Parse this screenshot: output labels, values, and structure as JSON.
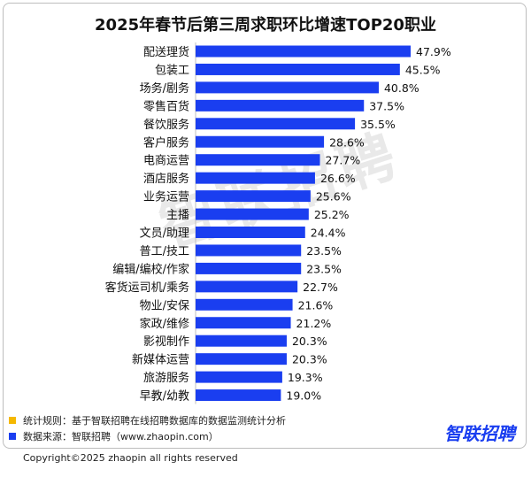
{
  "title": "2025年春节后第三周求职环比增速TOP20职业",
  "watermark": "智联招聘",
  "chart_data": {
    "type": "bar",
    "orientation": "horizontal",
    "title": "2025年春节后第三周求职环比增速TOP20职业",
    "categories": [
      "配送理货",
      "包装工",
      "场务/剧务",
      "零售百货",
      "餐饮服务",
      "客户服务",
      "电商运营",
      "酒店服务",
      "业务运营",
      "主播",
      "文员/助理",
      "普工/技工",
      "编辑/编校/作家",
      "客货运司机/乘务",
      "物业/安保",
      "家政/维修",
      "影视制作",
      "新媒体运营",
      "旅游服务",
      "早教/幼教"
    ],
    "values": [
      47.9,
      45.5,
      40.8,
      37.5,
      35.5,
      28.6,
      27.7,
      26.6,
      25.6,
      25.2,
      24.4,
      23.5,
      23.5,
      22.7,
      21.6,
      21.2,
      20.3,
      20.3,
      19.3,
      19.0
    ],
    "value_labels": [
      "47.9%",
      "45.5%",
      "40.8%",
      "37.5%",
      "35.5%",
      "28.6%",
      "27.7%",
      "26.6%",
      "25.6%",
      "25.2%",
      "24.4%",
      "23.5%",
      "23.5%",
      "22.7%",
      "21.6%",
      "21.2%",
      "20.3%",
      "20.3%",
      "19.3%",
      "19.0%"
    ],
    "bar_color": "#1a3ef0",
    "xlim": [
      0,
      47.9
    ],
    "grid": false,
    "legend": "none"
  },
  "notes": [
    {
      "text": "统计规则：基于智联招聘在线招聘数据库的数据监测统计分析",
      "color": "#f5b800"
    },
    {
      "text": "数据来源：智联招聘（www.zhaopin.com）",
      "color": "#1a3ef0"
    }
  ],
  "brand": {
    "text": "智联招聘",
    "color": "#1a3ef0"
  },
  "copyright": "Copyright©2025 zhaopin all rights reserved"
}
